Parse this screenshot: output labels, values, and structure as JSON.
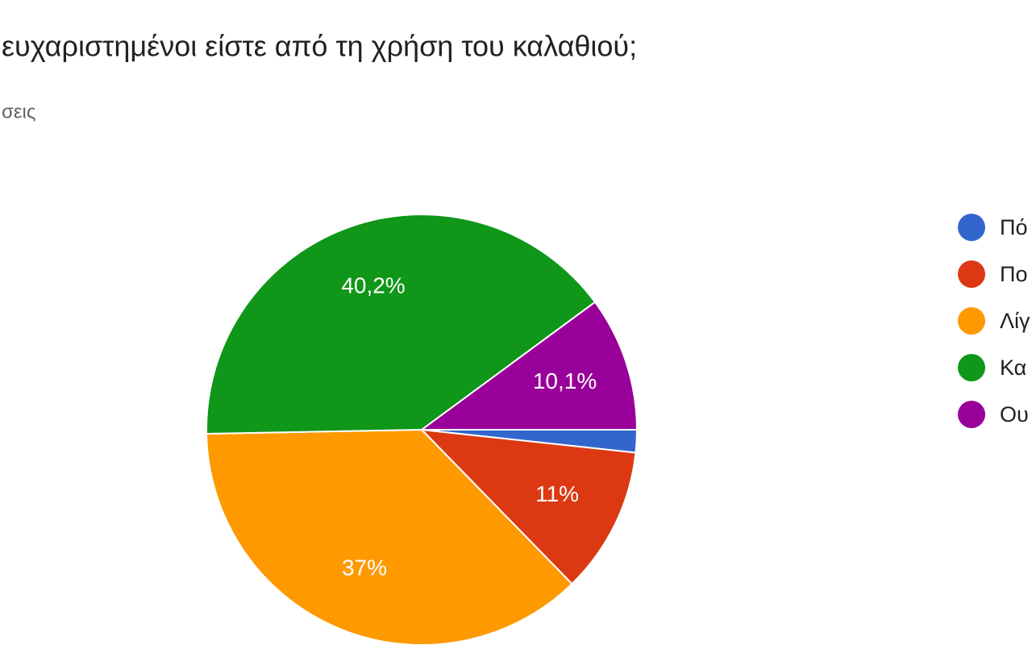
{
  "chart_data": {
    "type": "pie",
    "title": "ευχαριστημένοι είστε από τη χρήση του καλαθιού;",
    "subtitle": "σεις",
    "categories": [
      "Πό",
      "Πο",
      "Λίγ",
      "Κα",
      "Ου"
    ],
    "values": [
      1.7,
      11,
      37,
      40.2,
      10.1
    ],
    "value_labels": [
      null,
      "11%",
      "37%",
      "40,2%",
      "10,1%"
    ],
    "colors": [
      "#3366cc",
      "#dc3912",
      "#ff9900",
      "#109618",
      "#990099"
    ],
    "legend": "right"
  }
}
